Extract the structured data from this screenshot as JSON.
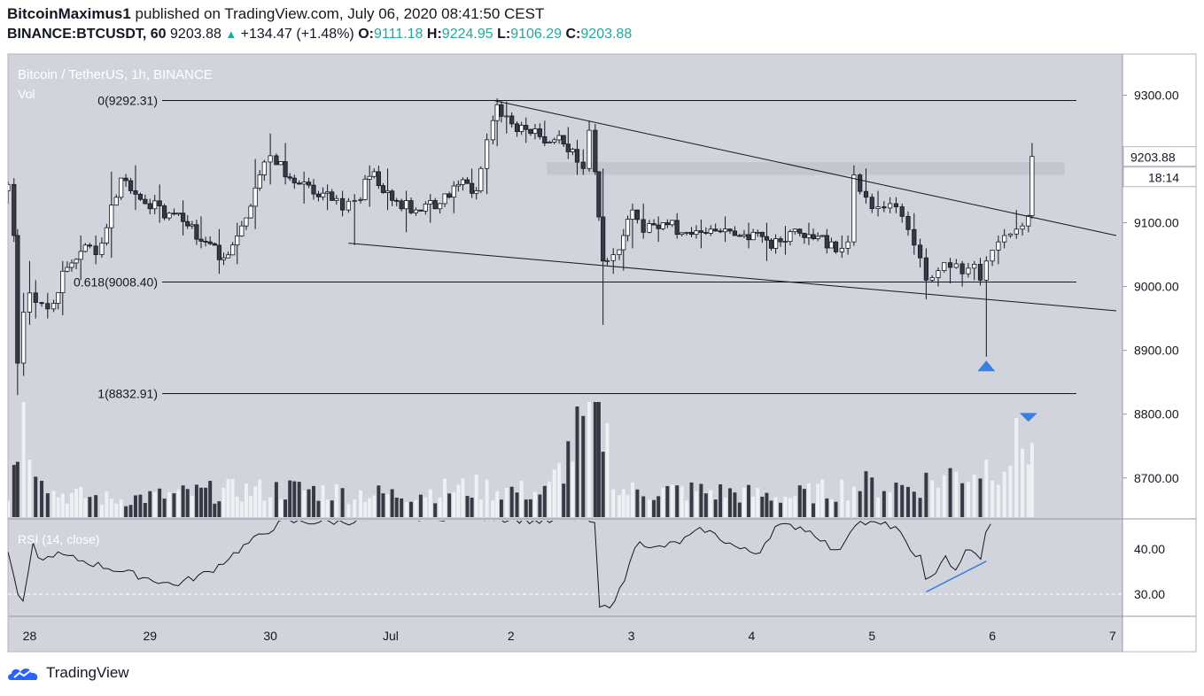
{
  "header": {
    "author": "BitcoinMaximus1",
    "published_text": "published on TradingView.com, July 06, 2020 08:41:50 CEST",
    "symbol": "BINANCE:BTCUSDT, 60",
    "last": "9203.88",
    "up_arrow": "▲",
    "change": "+134.47 (+1.48%)",
    "o_label": "O:",
    "o": "9111.18",
    "h_label": "H:",
    "h": "9224.95",
    "l_label": "L:",
    "l": "9106.29",
    "c_label": "C:",
    "c": "9203.88"
  },
  "chart_title": "Bitcoin / TetherUS, 1h, BINANCE",
  "vol_label": "Vol",
  "rsi_label": "RSI (14, close)",
  "price_badge": "9203.88",
  "countdown_badge": "18:14",
  "fib_levels": [
    {
      "label": "0(9292.31)",
      "price": 9292.31
    },
    {
      "label": "0.618(9008.40)",
      "price": 9008.4
    },
    {
      "label": "1(8832.91)",
      "price": 8832.91
    }
  ],
  "colors": {
    "chart_bg": "#d1d4dc",
    "bull": "#ffffff",
    "bear": "#363a45",
    "vol_bull": "#eef0f4",
    "vol_bear": "#363a45",
    "marker": "#3d7fe0",
    "rsi_line": "#131722"
  },
  "footer": {
    "brand": "TradingView",
    "logo_icon": "tradingview-cloud-icon"
  },
  "chart_data": [
    {
      "type": "candlestick",
      "title": "Bitcoin / TetherUS, 1h, BINANCE",
      "x_ticks": [
        "28",
        "29",
        "30",
        "Jul",
        "2",
        "3",
        "4",
        "5",
        "6",
        "7"
      ],
      "y_ticks": [
        "9300.00",
        "9200.00",
        "9100.00",
        "9000.00",
        "8900.00",
        "8800.00",
        "8700.00"
      ],
      "ylim": [
        8745,
        9350
      ],
      "xlim": [
        27.82,
        37.03
      ],
      "anchors_ohlc": [
        [
          27.82,
          9150,
          9165,
          9130,
          9160
        ],
        [
          27.87,
          9160,
          9170,
          9070,
          9080
        ],
        [
          27.9,
          9080,
          9090,
          8830,
          8880
        ],
        [
          27.95,
          8880,
          8990,
          8860,
          8960
        ],
        [
          28.0,
          8960,
          9040,
          8940,
          8990
        ],
        [
          28.05,
          8990,
          9010,
          8950,
          8975
        ],
        [
          28.1,
          8975,
          8990,
          8950,
          8965
        ],
        [
          28.2,
          8965,
          9040,
          8955,
          9030
        ],
        [
          28.35,
          9030,
          9080,
          9010,
          9065
        ],
        [
          28.5,
          9065,
          9080,
          9035,
          9050
        ],
        [
          28.6,
          9050,
          9180,
          9045,
          9170
        ],
        [
          28.8,
          9170,
          9190,
          9120,
          9130
        ],
        [
          29.0,
          9130,
          9160,
          9100,
          9115
        ],
        [
          29.2,
          9115,
          9135,
          9080,
          9095
        ],
        [
          29.35,
          9095,
          9110,
          9060,
          9070
        ],
        [
          29.5,
          9070,
          9090,
          9020,
          9045
        ],
        [
          29.65,
          9045,
          9100,
          9035,
          9095
        ],
        [
          29.8,
          9095,
          9200,
          9090,
          9175
        ],
        [
          29.95,
          9175,
          9240,
          9160,
          9205
        ],
        [
          30.05,
          9205,
          9225,
          9160,
          9170
        ],
        [
          30.2,
          9170,
          9180,
          9130,
          9145
        ],
        [
          30.4,
          9145,
          9160,
          9120,
          9135
        ],
        [
          30.55,
          9135,
          9150,
          9110,
          9120
        ],
        [
          30.65,
          9120,
          9145,
          9065,
          9135
        ],
        [
          30.75,
          9135,
          9190,
          9125,
          9180
        ],
        [
          30.9,
          9180,
          9185,
          9120,
          9135
        ],
        [
          31.05,
          9135,
          9150,
          9085,
          9120
        ],
        [
          31.25,
          9120,
          9145,
          9100,
          9130
        ],
        [
          31.45,
          9130,
          9165,
          9115,
          9160
        ],
        [
          31.6,
          9160,
          9185,
          9140,
          9150
        ],
        [
          31.75,
          9150,
          9240,
          9145,
          9230
        ],
        [
          31.85,
          9230,
          9295,
          9220,
          9285
        ],
        [
          31.92,
          9285,
          9290,
          9240,
          9255
        ],
        [
          32.05,
          9255,
          9265,
          9225,
          9240
        ],
        [
          32.2,
          9240,
          9260,
          9220,
          9230
        ],
        [
          32.4,
          9230,
          9250,
          9200,
          9215
        ],
        [
          32.55,
          9215,
          9230,
          9175,
          9195
        ],
        [
          32.6,
          9195,
          9215,
          9175,
          9185
        ],
        [
          32.65,
          9185,
          9260,
          9180,
          9245
        ],
        [
          32.7,
          9245,
          9255,
          9175,
          9180
        ],
        [
          32.73,
          9180,
          9185,
          8940,
          9040
        ],
        [
          32.8,
          9040,
          9060,
          9020,
          9050
        ],
        [
          32.9,
          9050,
          9090,
          9025,
          9080
        ],
        [
          32.97,
          9080,
          9130,
          9060,
          9120
        ],
        [
          33.05,
          9120,
          9130,
          9075,
          9085
        ],
        [
          33.15,
          9085,
          9110,
          9070,
          9100
        ],
        [
          33.3,
          9100,
          9115,
          9075,
          9085
        ],
        [
          33.5,
          9085,
          9105,
          9060,
          9090
        ],
        [
          33.7,
          9090,
          9110,
          9070,
          9080
        ],
        [
          33.9,
          9080,
          9100,
          9060,
          9085
        ],
        [
          34.05,
          9085,
          9100,
          9040,
          9060
        ],
        [
          34.2,
          9060,
          9095,
          9050,
          9090
        ],
        [
          34.4,
          9090,
          9100,
          9065,
          9075
        ],
        [
          34.55,
          9075,
          9090,
          9055,
          9070
        ],
        [
          34.7,
          9070,
          9080,
          9045,
          9060
        ],
        [
          34.8,
          9060,
          9080,
          9050,
          9070
        ],
        [
          34.85,
          9070,
          9190,
          9065,
          9175
        ],
        [
          34.9,
          9175,
          9185,
          9130,
          9140
        ],
        [
          35.0,
          9140,
          9150,
          9110,
          9125
        ],
        [
          35.1,
          9125,
          9140,
          9115,
          9130
        ],
        [
          35.2,
          9130,
          9140,
          9115,
          9125
        ],
        [
          35.25,
          9125,
          9130,
          9100,
          9110
        ],
        [
          35.3,
          9110,
          9115,
          9050,
          9065
        ],
        [
          35.4,
          9065,
          9075,
          9030,
          9045
        ],
        [
          35.45,
          9045,
          9060,
          8980,
          9010
        ],
        [
          35.5,
          9010,
          9030,
          9000,
          9025
        ],
        [
          35.6,
          9025,
          9045,
          9005,
          9030
        ],
        [
          35.7,
          9030,
          9040,
          9000,
          9020
        ],
        [
          35.8,
          9020,
          9040,
          9010,
          9035
        ],
        [
          35.9,
          9035,
          9045,
          9005,
          9010
        ],
        [
          35.95,
          9010,
          9020,
          8890,
          9040
        ],
        [
          36.0,
          9040,
          9080,
          9035,
          9070
        ],
        [
          36.1,
          9070,
          9090,
          9060,
          9080
        ],
        [
          36.15,
          9080,
          9120,
          9075,
          9090
        ],
        [
          36.25,
          9090,
          9100,
          9080,
          9095
        ],
        [
          36.3,
          9095,
          9110,
          9085,
          9111
        ],
        [
          36.33,
          9111.18,
          9224.95,
          9106.29,
          9203.88
        ]
      ],
      "volume_ylim": [
        0,
        2000
      ],
      "volume_anchors": [
        [
          27.82,
          180
        ],
        [
          27.92,
          1150
        ],
        [
          28.2,
          260
        ],
        [
          28.7,
          190
        ],
        [
          29.6,
          280
        ],
        [
          30.2,
          300
        ],
        [
          31.0,
          240
        ],
        [
          31.7,
          320
        ],
        [
          32.3,
          260
        ],
        [
          32.72,
          1250
        ],
        [
          32.9,
          280
        ],
        [
          33.6,
          280
        ],
        [
          34.3,
          220
        ],
        [
          34.9,
          350
        ],
        [
          35.3,
          330
        ],
        [
          35.95,
          560
        ],
        [
          36.3,
          820
        ]
      ],
      "rsi": {
        "ylim": [
          26.5,
          47.5
        ],
        "y_ticks": [
          "40.00",
          "30.00"
        ],
        "dashed_level": 30,
        "anchors": [
          [
            27.82,
            39
          ],
          [
            27.88,
            33.5
          ],
          [
            27.92,
            26
          ],
          [
            27.97,
            31
          ],
          [
            28.03,
            41
          ],
          [
            28.1,
            37
          ],
          [
            28.2,
            39
          ],
          [
            28.35,
            38
          ],
          [
            29.2,
            32
          ],
          [
            29.5,
            35
          ],
          [
            29.8,
            41
          ],
          [
            30.1,
            46
          ],
          [
            30.6,
            46
          ],
          [
            31.1,
            47
          ],
          [
            31.8,
            47
          ],
          [
            32.3,
            46
          ],
          [
            32.62,
            47
          ],
          [
            32.7,
            45
          ],
          [
            32.72,
            27
          ],
          [
            32.8,
            27
          ],
          [
            32.9,
            30.5
          ],
          [
            32.97,
            35
          ],
          [
            33.05,
            43
          ],
          [
            33.15,
            39.8
          ],
          [
            33.4,
            41.5
          ],
          [
            33.6,
            44.5
          ],
          [
            33.9,
            40
          ],
          [
            34.05,
            39
          ],
          [
            34.2,
            45
          ],
          [
            34.4,
            45
          ],
          [
            34.55,
            43
          ],
          [
            34.7,
            39
          ],
          [
            34.8,
            43
          ],
          [
            34.85,
            46
          ],
          [
            35.2,
            45
          ],
          [
            35.3,
            40
          ],
          [
            35.4,
            38.5
          ],
          [
            35.45,
            32
          ],
          [
            35.55,
            36
          ],
          [
            35.6,
            39
          ],
          [
            35.7,
            34.5
          ],
          [
            35.8,
            41
          ],
          [
            35.9,
            37
          ],
          [
            35.95,
            44
          ],
          [
            36.0,
            47
          ]
        ]
      },
      "trendlines": [
        {
          "name": "upper-trendline",
          "x1": 31.85,
          "y1": 9292,
          "x2": 37.03,
          "y2": 9080
        },
        {
          "name": "lower-trendline",
          "x1": 30.65,
          "y1": 9068,
          "x2": 37.03,
          "y2": 8962
        },
        {
          "name": "rsi-divergence-line",
          "rsi": true,
          "x1": 35.45,
          "y1": 30.5,
          "x2": 35.95,
          "y2": 37.3
        }
      ],
      "resistance_zone": {
        "x1": 32.3,
        "x2": 36.6,
        "y_low": 9175,
        "y_high": 9195
      },
      "markers": [
        {
          "name": "bottom-arrow-marker",
          "shape": "up-triangle",
          "x": 35.95,
          "y": 8877
        },
        {
          "name": "top-arrow-marker",
          "shape": "down-triangle",
          "x": 36.3,
          "y": 8795
        }
      ]
    }
  ]
}
